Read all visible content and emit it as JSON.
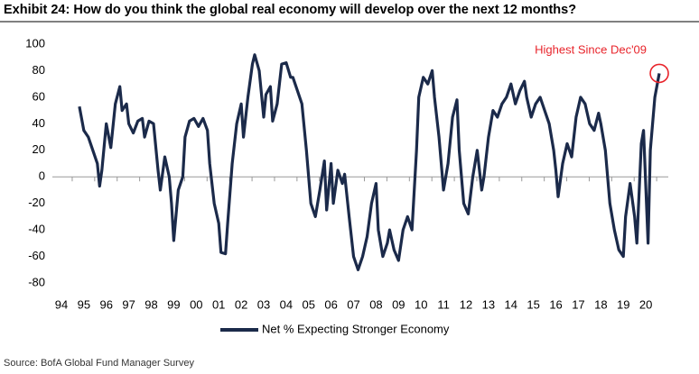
{
  "chart_data": {
    "type": "line",
    "title": "Exhibit 24: How do you think the global real economy will develop over the next 12 months?",
    "source": "Source: BofA Global Fund Manager Survey",
    "annotation": "Highest Since Dec'09",
    "annotation_color": "#e8242b",
    "xlim": [
      1993.6,
      2021.0
    ],
    "ylim": [
      -80,
      100
    ],
    "yticks": [
      -80,
      -60,
      -40,
      -20,
      0,
      20,
      40,
      60,
      80,
      100
    ],
    "xticks": [
      {
        "value": 1994,
        "label": "94"
      },
      {
        "value": 1995,
        "label": "95"
      },
      {
        "value": 1996,
        "label": "96"
      },
      {
        "value": 1997,
        "label": "97"
      },
      {
        "value": 1998,
        "label": "98"
      },
      {
        "value": 1999,
        "label": "99"
      },
      {
        "value": 2000,
        "label": "00"
      },
      {
        "value": 2001,
        "label": "01"
      },
      {
        "value": 2002,
        "label": "02"
      },
      {
        "value": 2003,
        "label": "03"
      },
      {
        "value": 2004,
        "label": "04"
      },
      {
        "value": 2005,
        "label": "05"
      },
      {
        "value": 2006,
        "label": "06"
      },
      {
        "value": 2007,
        "label": "07"
      },
      {
        "value": 2008,
        "label": "08"
      },
      {
        "value": 2009,
        "label": "09"
      },
      {
        "value": 2010,
        "label": "10"
      },
      {
        "value": 2011,
        "label": "11"
      },
      {
        "value": 2012,
        "label": "12"
      },
      {
        "value": 2013,
        "label": "13"
      },
      {
        "value": 2014,
        "label": "14"
      },
      {
        "value": 2015,
        "label": "15"
      },
      {
        "value": 2016,
        "label": "16"
      },
      {
        "value": 2017,
        "label": "17"
      },
      {
        "value": 2018,
        "label": "18"
      },
      {
        "value": 2019,
        "label": "19"
      },
      {
        "value": 2020,
        "label": "20"
      }
    ],
    "x": [
      1994.8,
      1995.0,
      1995.2,
      1995.4,
      1995.6,
      1995.7,
      1995.8,
      1996.0,
      1996.2,
      1996.4,
      1996.6,
      1996.7,
      1996.9,
      1997.0,
      1997.2,
      1997.4,
      1997.6,
      1997.7,
      1997.9,
      1998.1,
      1998.3,
      1998.4,
      1998.6,
      1998.8,
      1998.9,
      1999.0,
      1999.2,
      1999.4,
      1999.5,
      1999.7,
      1999.9,
      2000.1,
      2000.3,
      2000.5,
      2000.6,
      2000.8,
      2001.0,
      2001.1,
      2001.3,
      2001.4,
      2001.6,
      2001.8,
      2002.0,
      2002.1,
      2002.3,
      2002.5,
      2002.6,
      2002.8,
      2003.0,
      2003.1,
      2003.3,
      2003.4,
      2003.6,
      2003.8,
      2004.0,
      2004.2,
      2004.3,
      2004.5,
      2004.7,
      2004.9,
      2005.1,
      2005.3,
      2005.5,
      2005.7,
      2005.8,
      2006.0,
      2006.1,
      2006.3,
      2006.5,
      2006.6,
      2006.8,
      2007.0,
      2007.2,
      2007.4,
      2007.6,
      2007.8,
      2008.0,
      2008.1,
      2008.3,
      2008.5,
      2008.6,
      2008.8,
      2009.0,
      2009.2,
      2009.4,
      2009.6,
      2009.8,
      2009.9,
      2010.1,
      2010.3,
      2010.5,
      2010.6,
      2010.8,
      2011.0,
      2011.2,
      2011.4,
      2011.6,
      2011.7,
      2011.9,
      2012.1,
      2012.3,
      2012.5,
      2012.7,
      2012.8,
      2013.0,
      2013.2,
      2013.4,
      2013.6,
      2013.8,
      2014.0,
      2014.2,
      2014.4,
      2014.6,
      2014.7,
      2014.9,
      2015.1,
      2015.3,
      2015.5,
      2015.7,
      2015.9,
      2016.0,
      2016.1,
      2016.3,
      2016.5,
      2016.7,
      2016.9,
      2017.1,
      2017.3,
      2017.5,
      2017.7,
      2017.9,
      2018.0,
      2018.2,
      2018.4,
      2018.6,
      2018.8,
      2019.0,
      2019.1,
      2019.3,
      2019.5,
      2019.6,
      2019.8,
      2019.9,
      2020.1,
      2020.2,
      2020.4,
      2020.6
    ],
    "series": [
      {
        "name": "Net % Expecting Stronger Economy",
        "color": "#1b2a4a",
        "values": [
          53,
          35,
          30,
          20,
          10,
          -7,
          5,
          40,
          22,
          55,
          68,
          50,
          55,
          40,
          33,
          42,
          44,
          30,
          42,
          40,
          5,
          -10,
          15,
          0,
          -20,
          -48,
          -10,
          0,
          30,
          42,
          44,
          38,
          44,
          35,
          10,
          -20,
          -35,
          -57,
          -58,
          -35,
          10,
          40,
          55,
          30,
          60,
          85,
          92,
          80,
          45,
          62,
          68,
          42,
          55,
          85,
          86,
          75,
          75,
          65,
          55,
          20,
          -20,
          -30,
          -10,
          12,
          -25,
          10,
          -20,
          5,
          -5,
          2,
          -30,
          -60,
          -70,
          -60,
          -45,
          -20,
          -5,
          -40,
          -60,
          -50,
          -40,
          -55,
          -63,
          -40,
          -30,
          -40,
          20,
          60,
          75,
          70,
          80,
          60,
          30,
          -10,
          10,
          45,
          58,
          20,
          -20,
          -28,
          0,
          20,
          -10,
          0,
          30,
          50,
          45,
          55,
          60,
          70,
          55,
          65,
          72,
          60,
          45,
          55,
          60,
          50,
          40,
          20,
          5,
          -15,
          10,
          25,
          15,
          45,
          60,
          55,
          40,
          35,
          48,
          40,
          20,
          -20,
          -40,
          -55,
          -60,
          -30,
          -5,
          -30,
          -50,
          25,
          35,
          -50,
          20,
          60,
          78
        ]
      }
    ]
  }
}
